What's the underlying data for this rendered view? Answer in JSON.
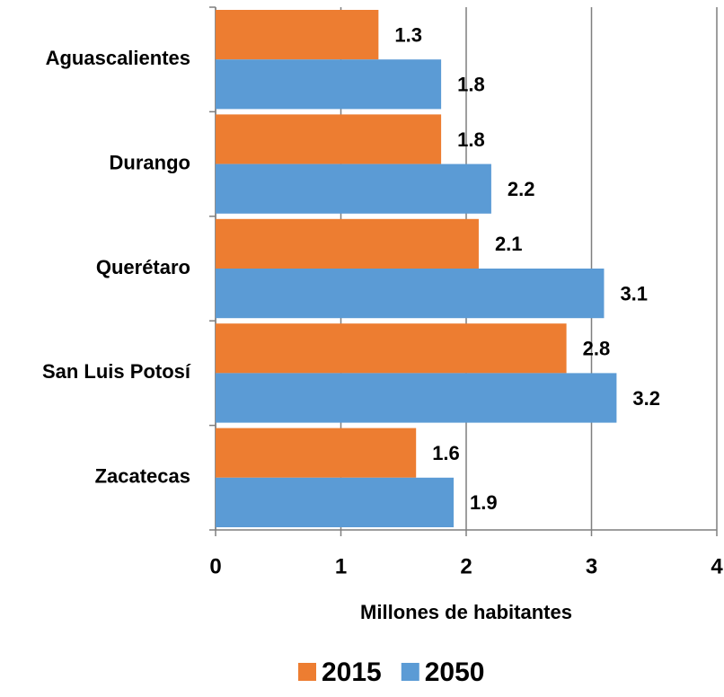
{
  "chart_data": {
    "type": "bar",
    "orientation": "horizontal",
    "x_label": "Millones de habitantes",
    "categories": [
      "Aguascalientes",
      "Durango",
      "Querétaro",
      "San Luis Potosí",
      "Zacatecas"
    ],
    "series": [
      {
        "name": "2015",
        "color": "#ed7d31",
        "values": [
          1.3,
          1.8,
          2.1,
          2.8,
          1.6
        ]
      },
      {
        "name": "2050",
        "color": "#5b9bd5",
        "values": [
          1.8,
          2.2,
          3.1,
          3.2,
          1.9
        ]
      }
    ],
    "xlim": [
      0,
      4
    ],
    "xticks": [
      0,
      1,
      2,
      3,
      4
    ],
    "grid": true,
    "legend": "bottom"
  }
}
